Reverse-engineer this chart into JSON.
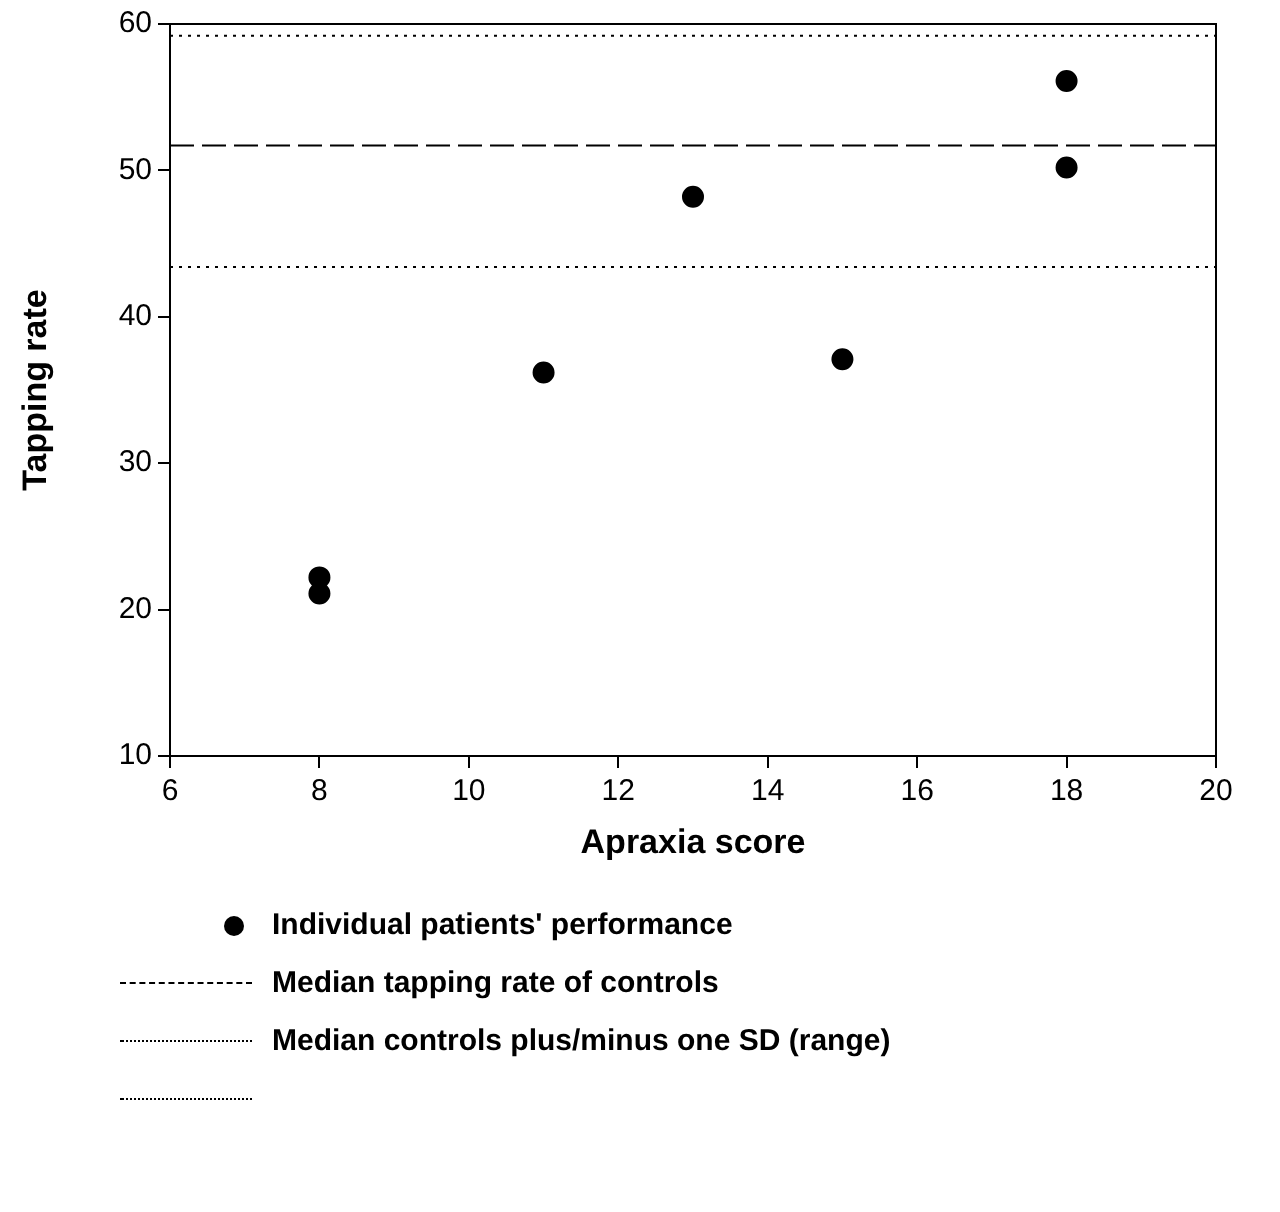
{
  "chart_data": {
    "type": "scatter",
    "xlabel": "Apraxia score",
    "ylabel": "Tapping rate",
    "series": [
      {
        "name": "Individual patients' performance",
        "color": "#000000",
        "x": [
          8,
          8,
          11,
          13,
          15,
          18,
          18
        ],
        "values": [
          22.2,
          21.1,
          36.2,
          48.2,
          37.1,
          56.1,
          50.2
        ]
      }
    ],
    "xlim": [
      6,
      20
    ],
    "xticks": [
      6,
      8,
      10,
      12,
      14,
      16,
      18,
      20
    ],
    "ylim": [
      10,
      60
    ],
    "yticks": [
      10,
      20,
      30,
      40,
      50,
      60
    ],
    "ref_lines": [
      {
        "axis": "y",
        "value": 51.7,
        "label": "Median tapping rate of controls",
        "line_style": "dashed",
        "color": "#000000"
      },
      {
        "axis": "y",
        "value": 59.2,
        "label": "Median controls plus/minus one SD (range)",
        "line_style": "dotted",
        "color": "#000000"
      },
      {
        "axis": "y",
        "value": 43.4,
        "label": null,
        "line_style": "dotted",
        "color": "#000000"
      }
    ],
    "marker": "circle",
    "grid": false,
    "legend": "bottom"
  }
}
